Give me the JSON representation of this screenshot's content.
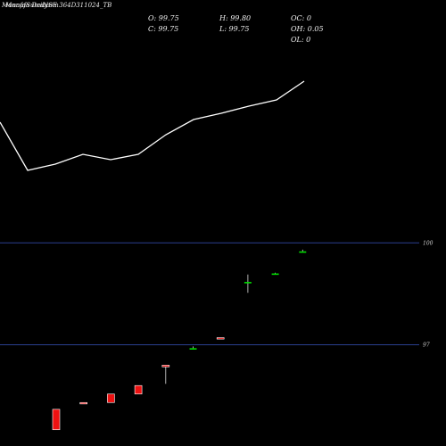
{
  "header": {
    "overlay_a": "MunafaSutra.com",
    "overlay_b": "Munafa Daily",
    "symbol_label": "NSE 364D311024_TB"
  },
  "ohlc": {
    "o_label": "O: 99.75",
    "h_label": "H: 99.80",
    "c_label": "C: 99.75",
    "l_label": "L: 99.75",
    "oc_label": "OC: 0",
    "oh_label": "OH: 0.05",
    "ol_label": "OL: 0"
  },
  "colors": {
    "background": "#000000",
    "up": "#00dd00",
    "down": "#ee1111",
    "line": "#ffffff",
    "level_line": "#2a3f8f"
  },
  "chart_data": [
    {
      "type": "line",
      "title": "",
      "series": [
        {
          "values": [
            96.6,
            91.2,
            91.9,
            93.0,
            92.4,
            93.0,
            95.2,
            96.9,
            97.6,
            98.4,
            99.1,
            101.2
          ]
        }
      ],
      "ylim": [
        84.1,
        104.3
      ]
    },
    {
      "type": "candlestick",
      "reference_levels": [
        {
          "label": "100",
          "value": 100
        },
        {
          "label": "97",
          "value": 97
        }
      ],
      "candles": [
        {
          "o": 95.1,
          "h": 95.1,
          "l": 94.5,
          "c": 94.5
        },
        {
          "o": 95.3,
          "h": 95.3,
          "l": 95.27,
          "c": 95.27
        },
        {
          "o": 95.55,
          "h": 95.55,
          "l": 95.3,
          "c": 95.3
        },
        {
          "o": 95.8,
          "h": 95.8,
          "l": 95.55,
          "c": 95.55
        },
        {
          "o": 96.4,
          "h": 96.4,
          "l": 95.85,
          "c": 96.35
        },
        {
          "o": 96.9,
          "h": 96.95,
          "l": 96.9,
          "c": 96.9
        },
        {
          "o": 97.21,
          "h": 97.21,
          "l": 97.19,
          "c": 97.2
        },
        {
          "o": 98.85,
          "h": 99.07,
          "l": 98.53,
          "c": 98.85
        },
        {
          "o": 99.1,
          "h": 99.12,
          "l": 99.1,
          "c": 99.1
        },
        {
          "o": 99.75,
          "h": 99.8,
          "l": 99.75,
          "c": 99.75
        }
      ],
      "ylim": [
        94.02,
        100.27
      ]
    }
  ]
}
